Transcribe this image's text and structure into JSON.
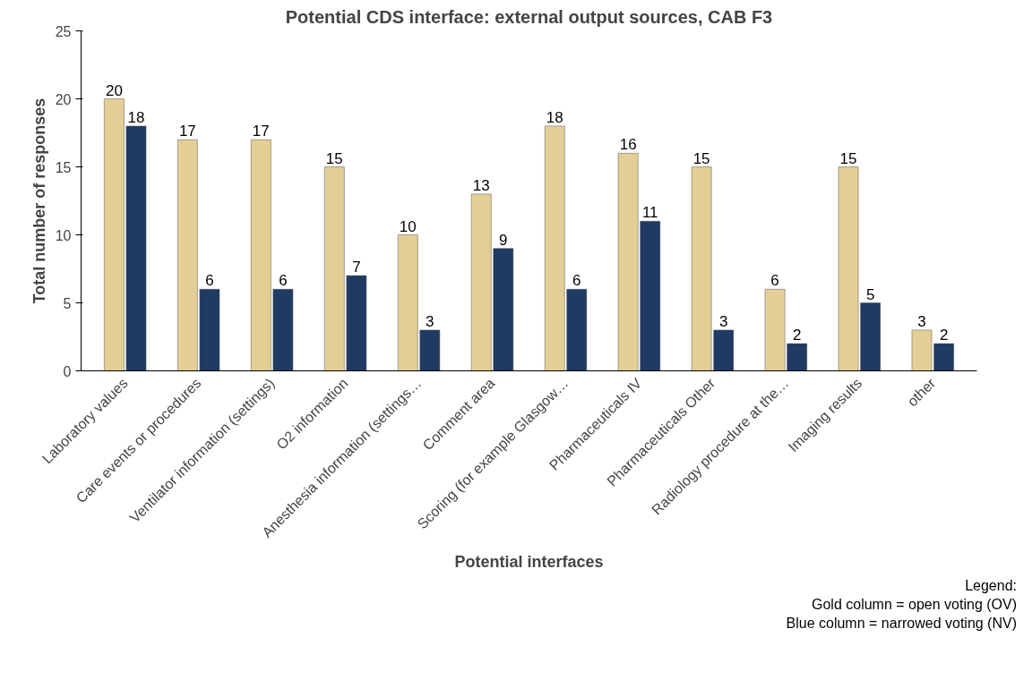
{
  "chart_data": {
    "type": "bar",
    "title": "Potential CDS interface: external output sources, CAB F3",
    "xlabel": "Potential interfaces",
    "ylabel": "Total number of responses",
    "categories": [
      "Laboratory values",
      "Care events or procedures",
      "Ventilator information (settings)",
      "O2 information",
      "Anesthesia information (settings…",
      "Comment area",
      "Scoring (for example Glasgow…",
      "Pharmaceuticals IV",
      "Pharmaceuticals Other",
      "Radiology procedure at the…",
      "Imaging results",
      "other"
    ],
    "series": [
      {
        "color": "#e3cf96",
        "values": [
          20,
          17,
          17,
          15,
          10,
          13,
          18,
          16,
          15,
          6,
          15,
          3
        ]
      },
      {
        "color": "#1f3a63",
        "values": [
          18,
          6,
          6,
          7,
          3,
          9,
          6,
          11,
          3,
          2,
          5,
          2
        ]
      }
    ],
    "ylim": [
      0,
      25
    ],
    "yticks": [
      0,
      5,
      10,
      15,
      20,
      25
    ],
    "grid": false,
    "data_labels": true,
    "annotations": [
      "Legend:",
      "Gold column = open voting (OV)",
      "Blue column = narrowed voting (NV)"
    ]
  }
}
